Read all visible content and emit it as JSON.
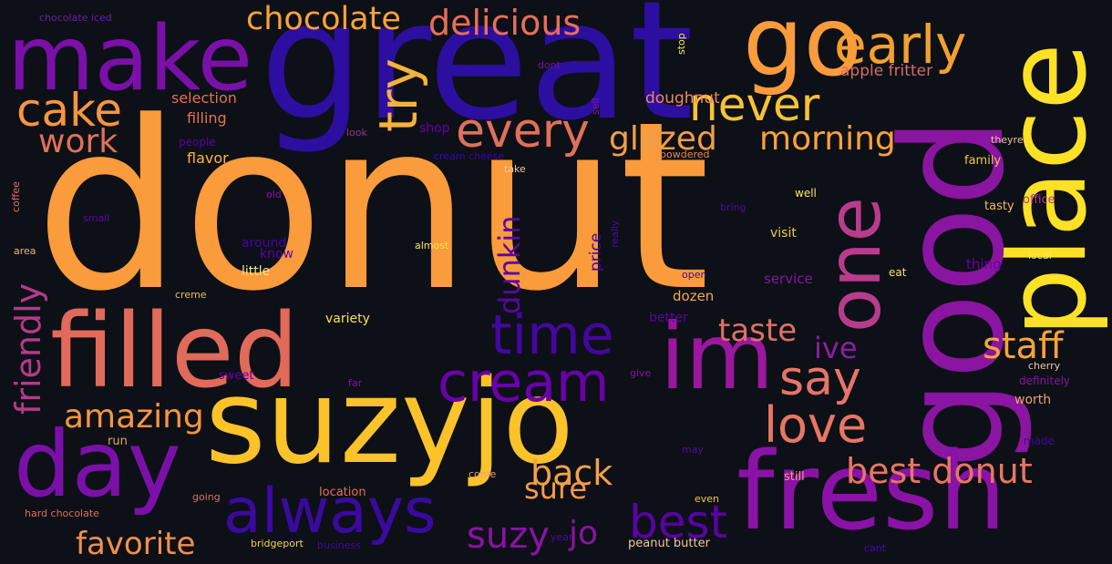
{
  "palette": {
    "background": "#0d1017"
  },
  "words": [
    {
      "text": "donut",
      "color": "#fa9b3c"
    },
    {
      "text": "great",
      "color": "#2c0fa0"
    },
    {
      "text": "make",
      "color": "#7a10a8"
    },
    {
      "text": "go",
      "color": "#fa9b3c"
    },
    {
      "text": "early",
      "color": "#f3a030"
    },
    {
      "text": "place",
      "color": "#fde125"
    },
    {
      "text": "good",
      "color": "#8a15a0"
    },
    {
      "text": "one",
      "color": "#b83c8c"
    },
    {
      "text": "chocolate",
      "color": "#fba238"
    },
    {
      "text": "delicious",
      "color": "#e76f5a"
    },
    {
      "text": "cake",
      "color": "#f89540"
    },
    {
      "text": "work",
      "color": "#e37155"
    },
    {
      "text": "try",
      "color": "#f6b23a"
    },
    {
      "text": "every",
      "color": "#e0705a"
    },
    {
      "text": "never",
      "color": "#f7c236"
    },
    {
      "text": "glazed",
      "color": "#f09e48"
    },
    {
      "text": "morning",
      "color": "#f9a23c"
    },
    {
      "text": "filled",
      "color": "#e16a5a"
    },
    {
      "text": "suzyjo",
      "color": "#fbc22a"
    },
    {
      "text": "im",
      "color": "#9b179e"
    },
    {
      "text": "fresh",
      "color": "#8a12a6"
    },
    {
      "text": "day",
      "color": "#7a10a8"
    },
    {
      "text": "time",
      "color": "#4406a0"
    },
    {
      "text": "cream",
      "color": "#6a00a8"
    },
    {
      "text": "always",
      "color": "#3a0aa0"
    },
    {
      "text": "love",
      "color": "#e77663"
    },
    {
      "text": "say",
      "color": "#e8736a"
    },
    {
      "text": "staff",
      "color": "#f9a23c"
    },
    {
      "text": "taste",
      "color": "#e06f65"
    },
    {
      "text": "ive",
      "color": "#8b1fa3"
    },
    {
      "text": "best donut",
      "color": "#e77663"
    },
    {
      "text": "best",
      "color": "#5a02a3"
    },
    {
      "text": "back",
      "color": "#f6a046"
    },
    {
      "text": "sure",
      "color": "#f59a48"
    },
    {
      "text": "suzy",
      "color": "#8a12a6"
    },
    {
      "text": "jo",
      "color": "#8a12a6"
    },
    {
      "text": "amazing",
      "color": "#f89540"
    },
    {
      "text": "favorite",
      "color": "#f0904c"
    },
    {
      "text": "friendly",
      "color": "#b63a8c"
    },
    {
      "text": "dunkin",
      "color": "#5b05a4"
    },
    {
      "text": "price",
      "color": "#47039f"
    },
    {
      "text": "doughnut",
      "color": "#ee8660"
    },
    {
      "text": "apple fritter",
      "color": "#d66a6a"
    },
    {
      "text": "selection",
      "color": "#e0734e"
    },
    {
      "text": "filling",
      "color": "#e37155"
    },
    {
      "text": "flavor",
      "color": "#fcb43a"
    },
    {
      "text": "chocolate iced",
      "color": "#6b1fa0"
    },
    {
      "text": "dont",
      "color": "#7a10a8"
    },
    {
      "text": "stop",
      "color": "#f5e84a"
    },
    {
      "text": "sell",
      "color": "#8a12a6"
    },
    {
      "text": "look",
      "color": "#9c3191"
    },
    {
      "text": "shop",
      "color": "#6a00a8"
    },
    {
      "text": "people",
      "color": "#5b05a4"
    },
    {
      "text": "cream cheese",
      "color": "#3a0aa0"
    },
    {
      "text": "take",
      "color": "#f0c9a0"
    },
    {
      "text": "powdered",
      "color": "#e98850"
    },
    {
      "text": "theyre",
      "color": "#f0c5a0"
    },
    {
      "text": "family",
      "color": "#f1c74a"
    },
    {
      "text": "coffee",
      "color": "#e86a6a"
    },
    {
      "text": "old",
      "color": "#8a12a6"
    },
    {
      "text": "well",
      "color": "#f9e95a"
    },
    {
      "text": "tasty",
      "color": "#f1b86a"
    },
    {
      "text": "office",
      "color": "#b43a8c"
    },
    {
      "text": "small",
      "color": "#5a07a0"
    },
    {
      "text": "bring",
      "color": "#4d0aa0"
    },
    {
      "text": "really",
      "color": "#4d0aa0"
    },
    {
      "text": "visit",
      "color": "#f4c94a"
    },
    {
      "text": "around",
      "color": "#4406a0"
    },
    {
      "text": "know",
      "color": "#5b05a4"
    },
    {
      "text": "almost",
      "color": "#f5e84a"
    },
    {
      "text": "local",
      "color": "#f7e56a"
    },
    {
      "text": "area",
      "color": "#f1b86a"
    },
    {
      "text": "little",
      "color": "#f2e98a"
    },
    {
      "text": "thing",
      "color": "#6a00a8"
    },
    {
      "text": "open",
      "color": "#4406a0"
    },
    {
      "text": "eat",
      "color": "#f9e36a"
    },
    {
      "text": "service",
      "color": "#8a12a6"
    },
    {
      "text": "dozen",
      "color": "#f4a65a"
    },
    {
      "text": "creme",
      "color": "#f1b86a"
    },
    {
      "text": "variety",
      "color": "#f7e24a"
    },
    {
      "text": "better",
      "color": "#5b05a4"
    },
    {
      "text": "sweet",
      "color": "#6a00a8"
    },
    {
      "text": "far",
      "color": "#8a12a6"
    },
    {
      "text": "give",
      "color": "#8a12a6"
    },
    {
      "text": "cherry",
      "color": "#f0c9a0"
    },
    {
      "text": "definitely",
      "color": "#8a12a6"
    },
    {
      "text": "worth",
      "color": "#f0a070"
    },
    {
      "text": "run",
      "color": "#f0a070"
    },
    {
      "text": "come",
      "color": "#f0a070"
    },
    {
      "text": "location",
      "color": "#e76f5a"
    },
    {
      "text": "may",
      "color": "#5b05a4"
    },
    {
      "text": "made",
      "color": "#4406a0"
    },
    {
      "text": "still",
      "color": "#f0a070"
    },
    {
      "text": "going",
      "color": "#e06f65"
    },
    {
      "text": "hard chocolate",
      "color": "#e07056"
    },
    {
      "text": "even",
      "color": "#f1c74a"
    },
    {
      "text": "bridgeport",
      "color": "#f7d44a"
    },
    {
      "text": "business",
      "color": "#4406a0"
    },
    {
      "text": "year",
      "color": "#4d0aa0"
    },
    {
      "text": "peanut butter",
      "color": "#f1c9a0"
    },
    {
      "text": "cant",
      "color": "#4d0aa0"
    }
  ]
}
